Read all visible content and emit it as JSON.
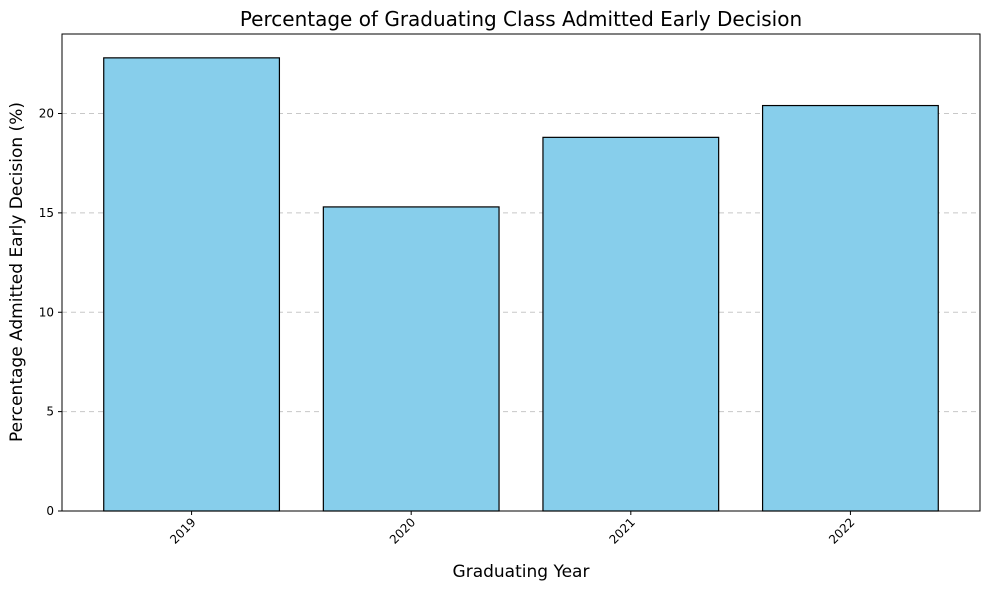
{
  "chart_data": {
    "type": "bar",
    "title": "Percentage of Graduating Class Admitted Early Decision",
    "xlabel": "Graduating Year",
    "ylabel": "Percentage Admitted Early Decision (%)",
    "categories": [
      "2019",
      "2020",
      "2021",
      "2022"
    ],
    "values": [
      22.8,
      15.3,
      18.8,
      20.4
    ],
    "ylim": [
      0,
      24
    ],
    "yticks": [
      0,
      5,
      10,
      15,
      20
    ],
    "x_tick_rotation_deg": 45,
    "grid": "y-axis, dashed",
    "legend": "none",
    "bar_color": "#87ceeb",
    "bar_edge_color": "#000000"
  }
}
